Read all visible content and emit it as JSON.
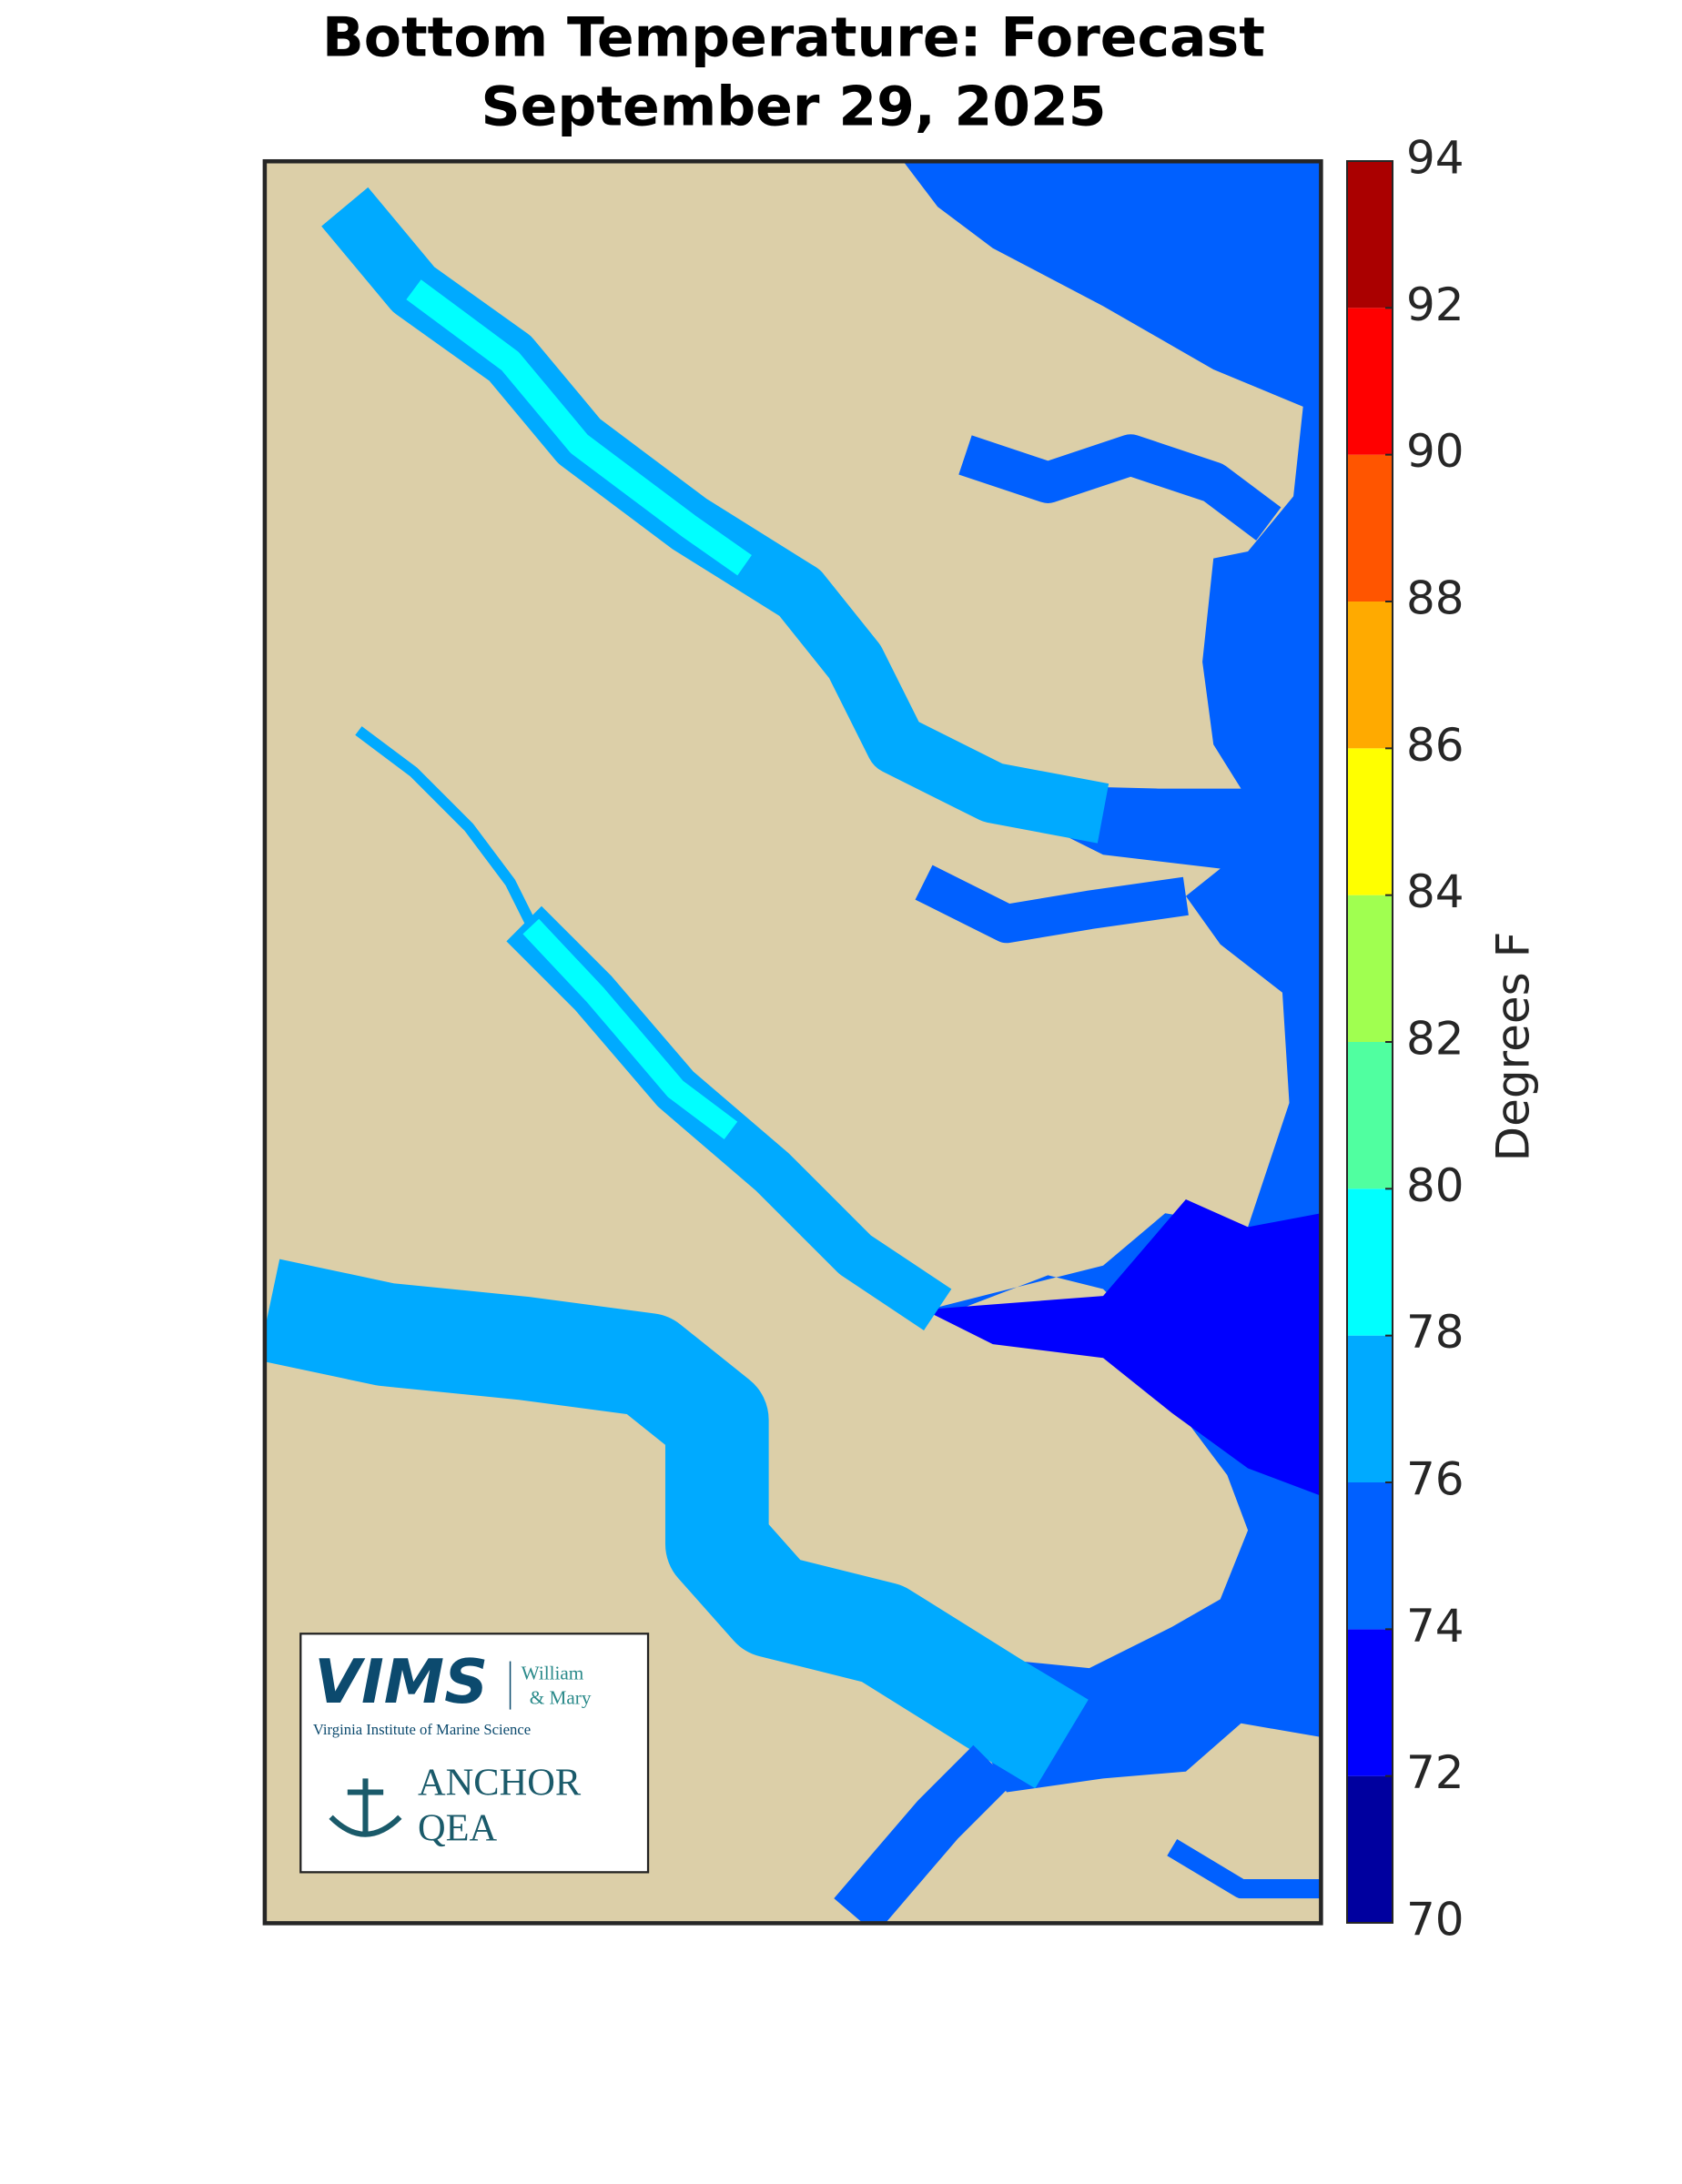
{
  "title": [
    "Bottom Temperature: Forecast",
    "September 29, 2025"
  ],
  "colorbar": {
    "label": "Degrees F",
    "lim": [
      70,
      94
    ],
    "ticks": [
      70,
      72,
      74,
      76,
      78,
      80,
      82,
      84,
      86,
      88,
      90,
      92,
      94
    ],
    "colors": [
      "#00009f",
      "#0000ff",
      "#0060ff",
      "#00aaff",
      "#00ffff",
      "#50ffa0",
      "#a0ff50",
      "#ffff00",
      "#ffaa00",
      "#ff5500",
      "#ff0000",
      "#aa0000"
    ]
  },
  "logo": {
    "vims": "VIMS",
    "william": "William",
    "mary": "& Mary",
    "institute": "Virginia Institute of Marine Science",
    "anchor": "ANCHOR",
    "qea": "QEA"
  }
}
